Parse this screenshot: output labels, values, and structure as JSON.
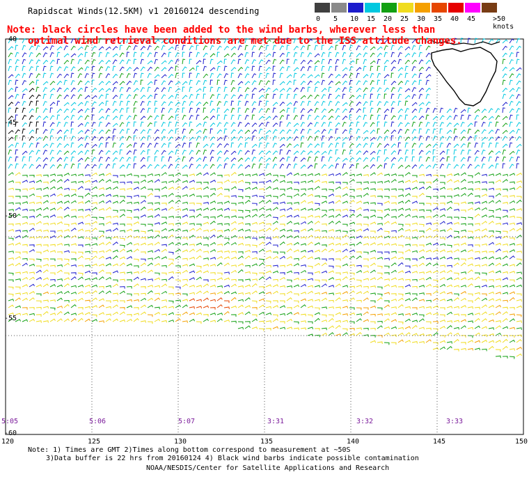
{
  "title": "Rapidscat Winds(12.5KM)  v1  20160124  descending",
  "note": {
    "line1": "Note: black circles have been added to the wind barbs, wherever less than",
    "line2": "optimal wind retrieval conditions are met due to the ISS attitude changes."
  },
  "legend": {
    "labels": [
      "0",
      "5",
      "10",
      "15",
      "20",
      "25",
      "30",
      "35",
      "40",
      "45",
      ">50 knots"
    ],
    "colors": [
      "#404040",
      "#8a8a8a",
      "#1c1ccc",
      "#00c8e0",
      "#12a012",
      "#f0dc1e",
      "#f5a000",
      "#e64600",
      "#e60000",
      "#ff00ff",
      "#783c14"
    ]
  },
  "lat_labels": [
    "-40",
    "-45",
    "-50",
    "-55",
    "-60"
  ],
  "lon_labels": [
    "120",
    "125",
    "130",
    "135",
    "140",
    "145",
    "150"
  ],
  "time_labels": [
    "5:05",
    "5:06",
    "5:07",
    "3:31",
    "3:32",
    "3:33"
  ],
  "footer": {
    "line1": "Note: 1) Times are GMT 2)Times along bottom correspond to measurement at ~50S",
    "line2": "3)Data buffer is 22 hrs from 20160124 4) Black wind barbs indicate possible contamination",
    "line3": "NOAA/NESDIS/Center for Satellite Applications and Research"
  },
  "map": {
    "lat_range": [
      -60,
      -40
    ],
    "lon_range": [
      120,
      150
    ],
    "colors": {
      "land": "#ffffff",
      "coast": "#000000",
      "grid": "#555555"
    }
  }
}
